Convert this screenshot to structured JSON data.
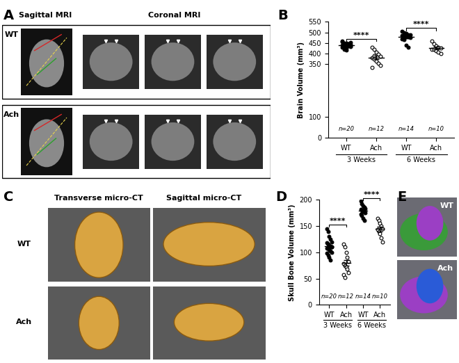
{
  "image_panels": {
    "A": {
      "label": "A",
      "column_titles": [
        "Sagittal MRI",
        "Coronal MRI"
      ],
      "rows": [
        "WT",
        "Ach"
      ]
    },
    "C": {
      "label": "C",
      "column_titles": [
        "Transverse micro-CT",
        "Sagittal micro-CT"
      ],
      "rows": [
        "WT",
        "Ach"
      ]
    },
    "E": {
      "label": "E",
      "rows": [
        "WT",
        "Ach"
      ]
    }
  },
  "chart_data": [
    {
      "type": "scatter",
      "panel": "B",
      "y_label": "Brain Volume (mm³)",
      "categories": [
        "WT",
        "Ach",
        "WT",
        "Ach"
      ],
      "groups": [
        {
          "label": "3 Weeks",
          "between": [
            0,
            1
          ]
        },
        {
          "label": "6 Weeks",
          "between": [
            2,
            3
          ]
        }
      ],
      "points": [
        {
          "values": [
            455,
            450,
            448,
            445,
            442,
            440,
            438,
            436,
            435,
            433,
            430,
            428,
            425,
            447,
            452,
            460,
            420,
            415,
            443,
            437
          ],
          "mean": 438,
          "sem": 3,
          "n_label": "n=20",
          "marker": "filled_circle",
          "color": "#000000"
        },
        {
          "values": [
            430,
            420,
            405,
            395,
            385,
            380,
            372,
            365,
            355,
            345,
            335,
            390
          ],
          "mean": 381,
          "sem": 8,
          "n_label": "n=12",
          "marker": "open_circle",
          "color": "#000000"
        },
        {
          "values": [
            505,
            500,
            495,
            490,
            488,
            485,
            482,
            480,
            478,
            475,
            470,
            465,
            440,
            430
          ],
          "mean": 477,
          "sem": 6,
          "n_label": "n=14",
          "marker": "filled_circle",
          "color": "#000000"
        },
        {
          "values": [
            460,
            445,
            435,
            430,
            425,
            420,
            418,
            412,
            405,
            400
          ],
          "mean": 425,
          "sem": 6,
          "n_label": "n=10",
          "marker": "open_circle",
          "color": "#000000"
        }
      ],
      "significance": [
        {
          "text": "****",
          "between": [
            0,
            1
          ],
          "y": 470
        },
        {
          "text": "****",
          "between": [
            2,
            3
          ],
          "y": 520
        }
      ],
      "ylim": [
        0,
        550
      ],
      "yticks": [
        0,
        100,
        350,
        400,
        450,
        500,
        550
      ]
    },
    {
      "type": "scatter",
      "panel": "D",
      "y_label": "Skull Bone Volume (mm³)",
      "categories": [
        "WT",
        "Ach",
        "WT",
        "Ach"
      ],
      "groups": [
        {
          "label": "3 Weeks",
          "between": [
            0,
            1
          ]
        },
        {
          "label": "6 Weeks",
          "between": [
            2,
            3
          ]
        }
      ],
      "points": [
        {
          "values": [
            145,
            140,
            130,
            125,
            120,
            118,
            115,
            113,
            112,
            110,
            108,
            107,
            105,
            103,
            100,
            98,
            95,
            90,
            85,
            110
          ],
          "mean": 111,
          "sem": 3.5,
          "n_label": "n=20",
          "marker": "filled_circle",
          "color": "#000000"
        },
        {
          "values": [
            115,
            110,
            100,
            90,
            82,
            78,
            75,
            72,
            68,
            62,
            58,
            52
          ],
          "mean": 80,
          "sem": 5.5,
          "n_label": "n=12",
          "marker": "open_circle",
          "color": "#000000"
        },
        {
          "values": [
            198,
            192,
            188,
            185,
            183,
            182,
            180,
            178,
            177,
            175,
            173,
            170,
            165,
            160
          ],
          "mean": 179,
          "sem": 3,
          "n_label": "n=14",
          "marker": "filled_circle",
          "color": "#000000"
        },
        {
          "values": [
            165,
            160,
            155,
            150,
            145,
            143,
            140,
            135,
            128,
            120
          ],
          "mean": 144,
          "sem": 4,
          "n_label": "n=10",
          "marker": "open_circle",
          "color": "#000000"
        }
      ],
      "significance": [
        {
          "text": "****",
          "between": [
            0,
            1
          ],
          "y": 152
        },
        {
          "text": "****",
          "between": [
            2,
            3
          ],
          "y": 203
        }
      ],
      "ylim": [
        0,
        200
      ],
      "yticks": [
        0,
        50,
        100,
        150,
        200
      ]
    }
  ]
}
